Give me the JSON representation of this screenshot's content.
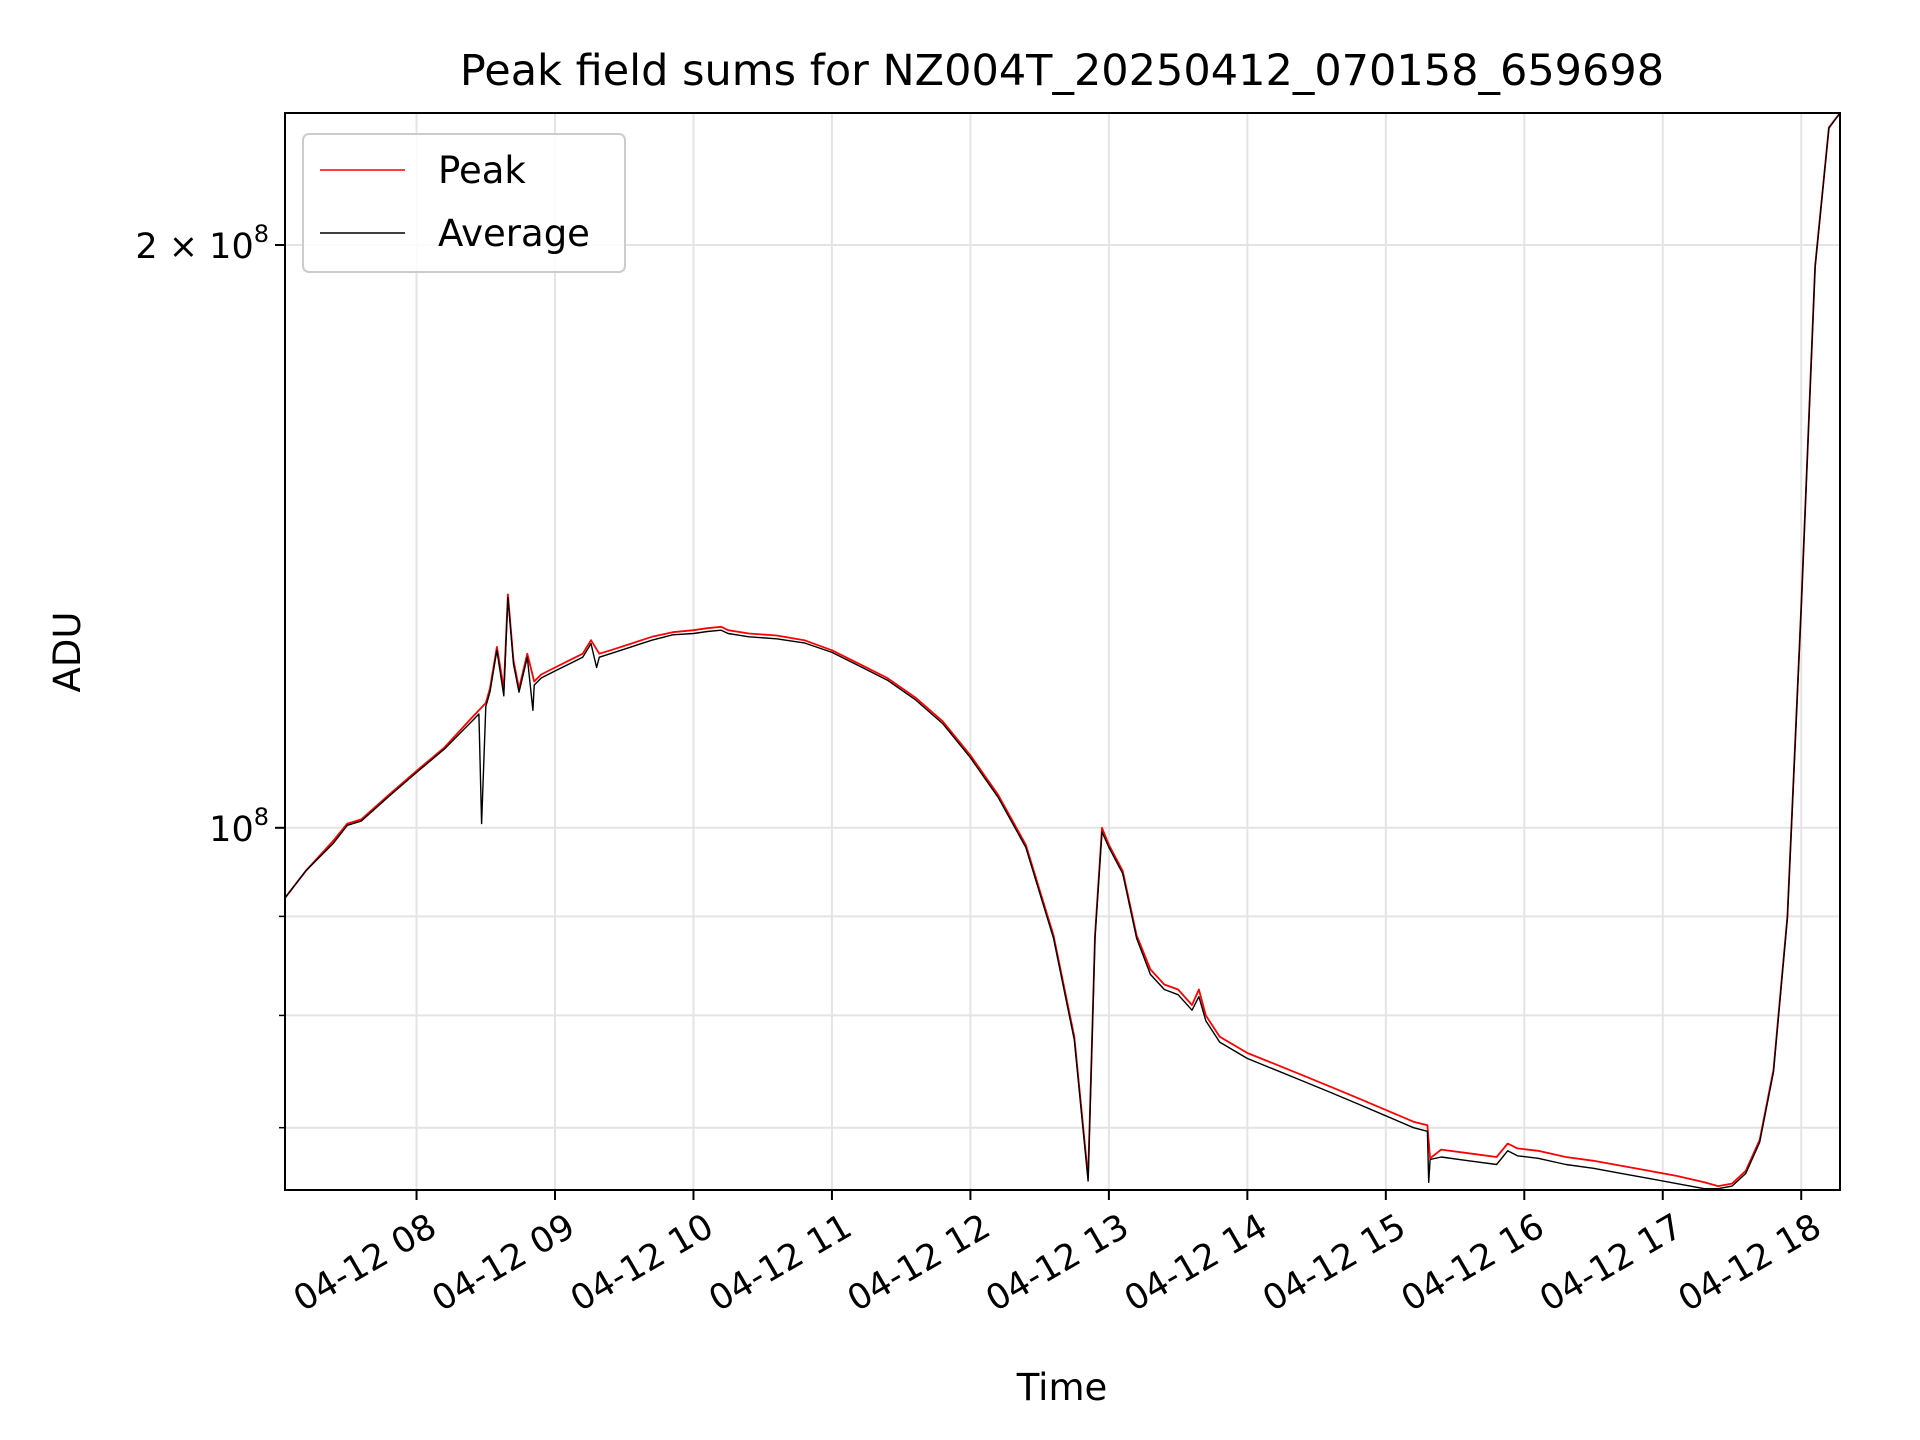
{
  "chart_data": {
    "type": "line",
    "title": "Peak field sums for NZ004T_20250412_070158_659698",
    "xlabel": "Time",
    "ylabel": "ADU",
    "y_scale": "log",
    "grid": true,
    "legend_position": "top-left",
    "xlim_hours": [
      7.05,
      18.28
    ],
    "ylim": [
      65000000,
      234000000
    ],
    "x_ticks": [
      {
        "value": 8,
        "label": "04-12 08"
      },
      {
        "value": 9,
        "label": "04-12 09"
      },
      {
        "value": 10,
        "label": "04-12 10"
      },
      {
        "value": 11,
        "label": "04-12 11"
      },
      {
        "value": 12,
        "label": "04-12 12"
      },
      {
        "value": 13,
        "label": "04-12 13"
      },
      {
        "value": 14,
        "label": "04-12 14"
      },
      {
        "value": 15,
        "label": "04-12 15"
      },
      {
        "value": 16,
        "label": "04-12 16"
      },
      {
        "value": 17,
        "label": "04-12 17"
      },
      {
        "value": 18,
        "label": "04-12 18"
      }
    ],
    "y_ticks_major": [
      {
        "value": 100000000,
        "base": "10",
        "exp": "8",
        "mult": ""
      },
      {
        "value": 200000000,
        "base": "10",
        "exp": "8",
        "mult": "2 × "
      }
    ],
    "y_ticks_minor": [
      70000000,
      80000000,
      90000000
    ],
    "series": [
      {
        "name": "Peak",
        "color": "#ff0000",
        "x": [
          7.05,
          7.2,
          7.4,
          7.5,
          7.6,
          7.8,
          8.0,
          8.2,
          8.4,
          8.5,
          8.53,
          8.58,
          8.63,
          8.66,
          8.7,
          8.74,
          8.8,
          8.85,
          8.9,
          9.0,
          9.1,
          9.2,
          9.26,
          9.32,
          9.4,
          9.55,
          9.7,
          9.85,
          10.0,
          10.1,
          10.2,
          10.25,
          10.4,
          10.6,
          10.8,
          11.0,
          11.2,
          11.4,
          11.6,
          11.8,
          12.0,
          12.2,
          12.4,
          12.6,
          12.75,
          12.85,
          12.9,
          12.95,
          13.0,
          13.1,
          13.2,
          13.3,
          13.4,
          13.5,
          13.6,
          13.65,
          13.7,
          13.8,
          14.0,
          14.2,
          14.4,
          14.6,
          14.8,
          15.0,
          15.2,
          15.3,
          15.32,
          15.4,
          15.6,
          15.8,
          15.88,
          15.95,
          16.1,
          16.3,
          16.5,
          16.7,
          16.9,
          17.1,
          17.3,
          17.4,
          17.5,
          17.6,
          17.7,
          17.8,
          17.9,
          18.0,
          18.1,
          18.2,
          18.28
        ],
        "y": [
          92000000,
          95000000,
          98500000,
          100500000,
          101000000,
          104000000,
          107000000,
          110000000,
          114000000,
          116000000,
          118000000,
          124000000,
          118000000,
          132000000,
          122000000,
          118000000,
          123000000,
          119000000,
          120000000,
          121000000,
          122000000,
          123000000,
          125000000,
          123000000,
          123500000,
          124500000,
          125500000,
          126200000,
          126500000,
          126800000,
          127000000,
          126500000,
          126000000,
          125700000,
          125000000,
          123500000,
          121500000,
          119500000,
          116800000,
          113500000,
          109000000,
          104000000,
          98000000,
          88000000,
          78000000,
          66000000,
          88000000,
          100000000,
          98000000,
          95000000,
          88000000,
          84500000,
          83000000,
          82500000,
          81000000,
          82500000,
          80000000,
          78000000,
          76500000,
          75500000,
          74500000,
          73500000,
          72500000,
          71500000,
          70500000,
          70200000,
          67500000,
          68200000,
          67900000,
          67600000,
          68700000,
          68300000,
          68100000,
          67600000,
          67300000,
          66900000,
          66500000,
          66100000,
          65600000,
          65300000,
          65500000,
          66500000,
          69000000,
          75000000,
          90000000,
          130000000,
          195000000,
          230000000,
          234000000
        ]
      },
      {
        "name": "Average",
        "color": "#000000",
        "x": [
          7.05,
          7.2,
          7.4,
          7.5,
          7.6,
          7.8,
          8.0,
          8.2,
          8.4,
          8.45,
          8.47,
          8.5,
          8.53,
          8.58,
          8.63,
          8.66,
          8.7,
          8.74,
          8.8,
          8.84,
          8.85,
          8.9,
          9.0,
          9.1,
          9.2,
          9.26,
          9.3,
          9.32,
          9.4,
          9.55,
          9.7,
          9.85,
          10.0,
          10.1,
          10.2,
          10.25,
          10.4,
          10.6,
          10.8,
          11.0,
          11.2,
          11.4,
          11.6,
          11.8,
          12.0,
          12.2,
          12.4,
          12.6,
          12.75,
          12.85,
          12.9,
          12.95,
          13.0,
          13.1,
          13.2,
          13.3,
          13.4,
          13.5,
          13.6,
          13.65,
          13.7,
          13.8,
          14.0,
          14.2,
          14.4,
          14.6,
          14.8,
          15.0,
          15.2,
          15.3,
          15.31,
          15.32,
          15.4,
          15.6,
          15.8,
          15.88,
          15.95,
          16.1,
          16.3,
          16.5,
          16.7,
          16.9,
          17.1,
          17.3,
          17.4,
          17.5,
          17.6,
          17.7,
          17.8,
          17.9,
          18.0,
          18.1,
          18.2,
          18.28
        ],
        "y": [
          92000000,
          95000000,
          98200000,
          100300000,
          100800000,
          103800000,
          106800000,
          109800000,
          113500000,
          114500000,
          100500000,
          115500000,
          117500000,
          123500000,
          117000000,
          131500000,
          121500000,
          117500000,
          122500000,
          115000000,
          118500000,
          119500000,
          120500000,
          121500000,
          122500000,
          124500000,
          121000000,
          122500000,
          123000000,
          124000000,
          125000000,
          125800000,
          126000000,
          126300000,
          126500000,
          126000000,
          125500000,
          125200000,
          124600000,
          123200000,
          121200000,
          119200000,
          116500000,
          113200000,
          108700000,
          103700000,
          97700000,
          87700000,
          77700000,
          65700000,
          87700000,
          99500000,
          97700000,
          94700000,
          87700000,
          84000000,
          82500000,
          82000000,
          80500000,
          81800000,
          79500000,
          77500000,
          76000000,
          75000000,
          74000000,
          73000000,
          72000000,
          71000000,
          70000000,
          69700000,
          65600000,
          67400000,
          67600000,
          67300000,
          67000000,
          68100000,
          67700000,
          67500000,
          67000000,
          66700000,
          66300000,
          65900000,
          65500000,
          65100000,
          65100000,
          65300000,
          66300000,
          68800000,
          74800000,
          89800000,
          129800000,
          194800000,
          229800000,
          234000000
        ]
      }
    ]
  }
}
